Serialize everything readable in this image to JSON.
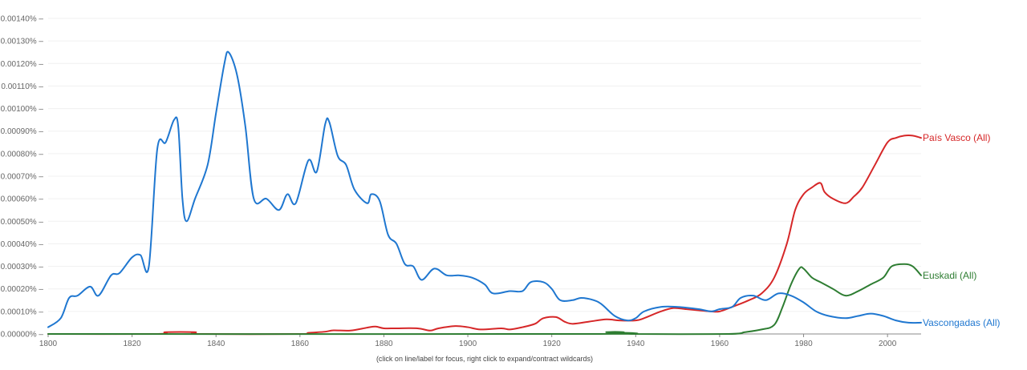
{
  "chart_data": {
    "type": "line",
    "xlim": [
      1800,
      2008
    ],
    "ylim": [
      0,
      0.0014
    ],
    "x_ticks": [
      1800,
      1820,
      1840,
      1860,
      1880,
      1900,
      1920,
      1940,
      1960,
      1980,
      2000
    ],
    "y_ticks": [
      {
        "value": 0.0,
        "label": "0.00000%"
      },
      {
        "value": 0.0001,
        "label": "0.00010%"
      },
      {
        "value": 0.0002,
        "label": "0.00020%"
      },
      {
        "value": 0.0003,
        "label": "0.00030%"
      },
      {
        "value": 0.0004,
        "label": "0.00040%"
      },
      {
        "value": 0.0005,
        "label": "0.00050%"
      },
      {
        "value": 0.0006,
        "label": "0.00060%"
      },
      {
        "value": 0.0007,
        "label": "0.00070%"
      },
      {
        "value": 0.0008,
        "label": "0.00080%"
      },
      {
        "value": 0.0009,
        "label": "0.00090%"
      },
      {
        "value": 0.001,
        "label": "0.00100%"
      },
      {
        "value": 0.0011,
        "label": "0.00110%"
      },
      {
        "value": 0.0012,
        "label": "0.00120%"
      },
      {
        "value": 0.0013,
        "label": "0.00130%"
      },
      {
        "value": 0.0014,
        "label": "0.00140%"
      }
    ],
    "footnote": "(click on line/label for focus, right click to expand/contract wildcards)",
    "series": [
      {
        "name": "País Vasco (All)",
        "color": "#d62728",
        "points": [
          [
            1800,
            0
          ],
          [
            1826,
            0
          ],
          [
            1828,
            8e-06
          ],
          [
            1835,
            8e-06
          ],
          [
            1836,
            0
          ],
          [
            1860,
            0
          ],
          [
            1862,
            5e-06
          ],
          [
            1866,
            1e-05
          ],
          [
            1868,
            1.6e-05
          ],
          [
            1872,
            1.5e-05
          ],
          [
            1876,
            2.8e-05
          ],
          [
            1878,
            3.3e-05
          ],
          [
            1880,
            2.5e-05
          ],
          [
            1883,
            2.5e-05
          ],
          [
            1888,
            2.5e-05
          ],
          [
            1891,
            1.5e-05
          ],
          [
            1893,
            2.5e-05
          ],
          [
            1897,
            3.5e-05
          ],
          [
            1900,
            3e-05
          ],
          [
            1903,
            2e-05
          ],
          [
            1908,
            2.5e-05
          ],
          [
            1910,
            2e-05
          ],
          [
            1913,
            3e-05
          ],
          [
            1916,
            4.5e-05
          ],
          [
            1918,
            7e-05
          ],
          [
            1921,
            7.5e-05
          ],
          [
            1923,
            5.5e-05
          ],
          [
            1925,
            4.5e-05
          ],
          [
            1929,
            5.5e-05
          ],
          [
            1933,
            6.5e-05
          ],
          [
            1936,
            6e-05
          ],
          [
            1940,
            6e-05
          ],
          [
            1942,
            7e-05
          ],
          [
            1946,
            0.0001
          ],
          [
            1949,
            0.000115
          ],
          [
            1952,
            0.00011
          ],
          [
            1955,
            0.000105
          ],
          [
            1958,
            0.0001
          ],
          [
            1960,
            0.0001
          ],
          [
            1963,
            0.00012
          ],
          [
            1967,
            0.00015
          ],
          [
            1970,
            0.00018
          ],
          [
            1973,
            0.00025
          ],
          [
            1976,
            0.0004
          ],
          [
            1978,
            0.00055
          ],
          [
            1980,
            0.00062
          ],
          [
            1982,
            0.00065
          ],
          [
            1984,
            0.00067
          ],
          [
            1985,
            0.00063
          ],
          [
            1987,
            0.0006
          ],
          [
            1990,
            0.00058
          ],
          [
            1992,
            0.00061
          ],
          [
            1994,
            0.00065
          ],
          [
            1997,
            0.00075
          ],
          [
            2000,
            0.00085
          ],
          [
            2002,
            0.00087
          ],
          [
            2004,
            0.00088
          ],
          [
            2006,
            0.00088
          ],
          [
            2008,
            0.00087
          ]
        ]
      },
      {
        "name": "Euskadi (All)",
        "color": "#2e7d32",
        "points": [
          [
            1800,
            0
          ],
          [
            1930,
            0
          ],
          [
            1933,
            8e-06
          ],
          [
            1937,
            8e-06
          ],
          [
            1939,
            0
          ],
          [
            1962,
            0
          ],
          [
            1966,
            8e-06
          ],
          [
            1970,
            2e-05
          ],
          [
            1973,
            4e-05
          ],
          [
            1975,
            0.00012
          ],
          [
            1977,
            0.00022
          ],
          [
            1979,
            0.00029
          ],
          [
            1980,
            0.00029
          ],
          [
            1982,
            0.00025
          ],
          [
            1984,
            0.00023
          ],
          [
            1987,
            0.0002
          ],
          [
            1990,
            0.00017
          ],
          [
            1993,
            0.00019
          ],
          [
            1996,
            0.00022
          ],
          [
            1999,
            0.00025
          ],
          [
            2001,
            0.0003
          ],
          [
            2004,
            0.00031
          ],
          [
            2006,
            0.0003
          ],
          [
            2008,
            0.00026
          ]
        ]
      },
      {
        "name": "Vascongadas (All)",
        "color": "#1f77d0",
        "points": [
          [
            1800,
            3e-05
          ],
          [
            1803,
            7e-05
          ],
          [
            1805,
            0.00016
          ],
          [
            1807,
            0.00017
          ],
          [
            1810,
            0.00021
          ],
          [
            1812,
            0.00017
          ],
          [
            1815,
            0.00026
          ],
          [
            1817,
            0.00027
          ],
          [
            1820,
            0.00034
          ],
          [
            1822,
            0.00035
          ],
          [
            1824,
            0.0003
          ],
          [
            1826,
            0.00082
          ],
          [
            1828,
            0.00085
          ],
          [
            1830,
            0.00095
          ],
          [
            1831,
            0.00092
          ],
          [
            1832,
            0.0006
          ],
          [
            1833,
            0.0005
          ],
          [
            1835,
            0.0006
          ],
          [
            1838,
            0.00075
          ],
          [
            1840,
            0.00098
          ],
          [
            1842,
            0.0012
          ],
          [
            1843,
            0.00125
          ],
          [
            1845,
            0.00115
          ],
          [
            1847,
            0.00092
          ],
          [
            1849,
            0.0006
          ],
          [
            1852,
            0.0006
          ],
          [
            1855,
            0.00055
          ],
          [
            1857,
            0.00062
          ],
          [
            1859,
            0.00058
          ],
          [
            1862,
            0.00077
          ],
          [
            1864,
            0.00072
          ],
          [
            1866,
            0.00093
          ],
          [
            1867,
            0.00094
          ],
          [
            1869,
            0.00079
          ],
          [
            1871,
            0.00075
          ],
          [
            1873,
            0.00064
          ],
          [
            1876,
            0.00058
          ],
          [
            1877,
            0.00062
          ],
          [
            1879,
            0.00059
          ],
          [
            1881,
            0.00044
          ],
          [
            1883,
            0.0004
          ],
          [
            1885,
            0.00031
          ],
          [
            1887,
            0.0003
          ],
          [
            1889,
            0.00024
          ],
          [
            1892,
            0.00029
          ],
          [
            1895,
            0.00026
          ],
          [
            1898,
            0.00026
          ],
          [
            1901,
            0.00025
          ],
          [
            1904,
            0.00022
          ],
          [
            1906,
            0.00018
          ],
          [
            1910,
            0.00019
          ],
          [
            1913,
            0.00019
          ],
          [
            1915,
            0.00023
          ],
          [
            1918,
            0.00023
          ],
          [
            1920,
            0.0002
          ],
          [
            1922,
            0.00015
          ],
          [
            1925,
            0.00015
          ],
          [
            1927,
            0.00016
          ],
          [
            1930,
            0.00015
          ],
          [
            1932,
            0.00013
          ],
          [
            1935,
            8e-05
          ],
          [
            1938,
            6e-05
          ],
          [
            1940,
            7e-05
          ],
          [
            1942,
            0.0001
          ],
          [
            1946,
            0.00012
          ],
          [
            1950,
            0.00012
          ],
          [
            1955,
            0.00011
          ],
          [
            1958,
            0.0001
          ],
          [
            1960,
            0.00011
          ],
          [
            1963,
            0.00012
          ],
          [
            1965,
            0.00016
          ],
          [
            1968,
            0.00017
          ],
          [
            1971,
            0.00015
          ],
          [
            1974,
            0.00018
          ],
          [
            1977,
            0.00017
          ],
          [
            1980,
            0.00014
          ],
          [
            1983,
            0.0001
          ],
          [
            1986,
            8e-05
          ],
          [
            1990,
            7e-05
          ],
          [
            1993,
            8e-05
          ],
          [
            1996,
            9e-05
          ],
          [
            1999,
            8e-05
          ],
          [
            2002,
            6e-05
          ],
          [
            2005,
            5e-05
          ],
          [
            2008,
            5e-05
          ]
        ]
      }
    ]
  }
}
